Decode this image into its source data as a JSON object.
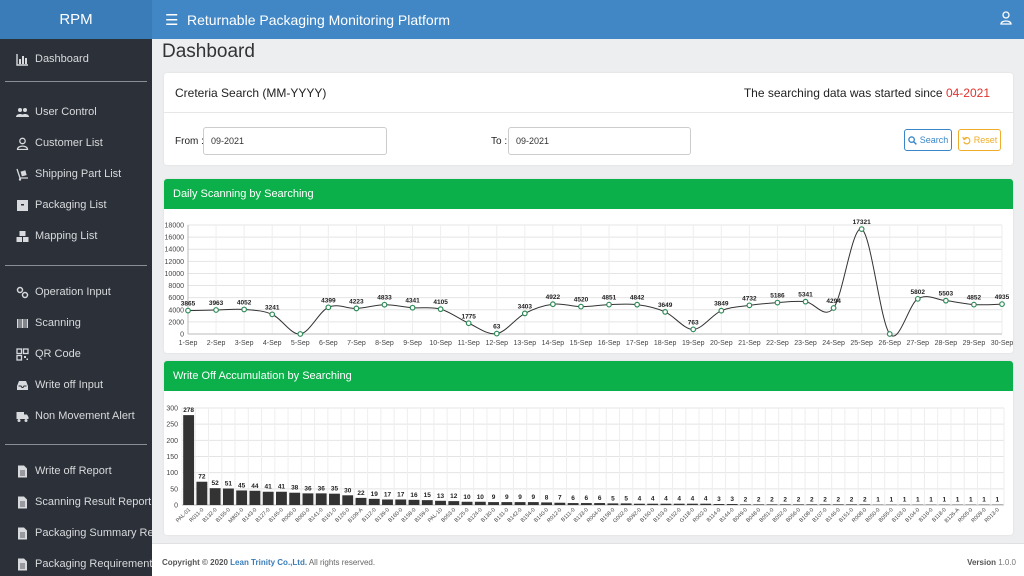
{
  "brand": "RPM",
  "header": {
    "title": "Returnable Packaging Monitoring Platform"
  },
  "sidebar": {
    "items": [
      {
        "label": "Dashboard",
        "icon": "chart-icon"
      },
      {
        "label": "User Control",
        "icon": "users-icon"
      },
      {
        "label": "Customer List",
        "icon": "user-icon"
      },
      {
        "label": "Shipping Part List",
        "icon": "dolly-icon"
      },
      {
        "label": "Packaging List",
        "icon": "box-icon"
      },
      {
        "label": "Mapping List",
        "icon": "boxes-icon"
      },
      {
        "label": "Operation Input",
        "icon": "cogs-icon"
      },
      {
        "label": "Scanning",
        "icon": "barcode-icon"
      },
      {
        "label": "QR Code",
        "icon": "qrcode-icon"
      },
      {
        "label": "Write off Input",
        "icon": "inbox-icon"
      },
      {
        "label": "Non Movement Alert",
        "icon": "truck-icon"
      },
      {
        "label": "Write off Report",
        "icon": "file-icon"
      },
      {
        "label": "Scanning Result Report",
        "icon": "file-icon"
      },
      {
        "label": "Packaging Summary Report",
        "icon": "file-icon"
      },
      {
        "label": "Packaging Requirement Rep",
        "icon": "file-icon"
      }
    ]
  },
  "page": {
    "title": "Dashboard"
  },
  "search": {
    "title": "Creteria Search (MM-YYYY)",
    "since_text": "The searching data was started since",
    "since_date": "04-2021",
    "from_label": "From :",
    "from_value": "09-2021",
    "to_label": "To :",
    "to_value": "09-2021",
    "search_label": "Search",
    "reset_label": "Reset"
  },
  "daily": {
    "title": "Daily Scanning by Searching"
  },
  "writeoff": {
    "title": "Write Off Accumulation by Searching"
  },
  "footer": {
    "copyright_prefix": "Copyright © 2020",
    "company": "Lean Trinity Co.,Ltd.",
    "rights": "All rights reserved.",
    "version_label": "Version",
    "version": "1.0.0"
  },
  "colors": {
    "accent": "#4187c6",
    "panel_header": "#0cb04a",
    "highlight": "#e0322e",
    "line": "#333333",
    "bar": "#333333"
  },
  "chart_data": [
    {
      "type": "line",
      "title": "Daily Scanning by Searching",
      "categories": [
        "1-Sep",
        "2-Sep",
        "3-Sep",
        "4-Sep",
        "5-Sep",
        "6-Sep",
        "7-Sep",
        "8-Sep",
        "9-Sep",
        "10-Sep",
        "11-Sep",
        "12-Sep",
        "13-Sep",
        "14-Sep",
        "15-Sep",
        "16-Sep",
        "17-Sep",
        "18-Sep",
        "19-Sep",
        "20-Sep",
        "21-Sep",
        "22-Sep",
        "23-Sep",
        "24-Sep",
        "25-Sep",
        "26-Sep",
        "27-Sep",
        "28-Sep",
        "29-Sep",
        "30-Sep"
      ],
      "values": [
        3865,
        3963,
        4052,
        3241,
        null,
        4399,
        4223,
        4833,
        4341,
        4105,
        1775,
        63,
        3403,
        4922,
        4520,
        4851,
        4842,
        3649,
        763,
        3849,
        4732,
        5186,
        5341,
        4294,
        17321,
        null,
        5802,
        5503,
        4852,
        4935
      ],
      "yticks": [
        0,
        2000,
        4000,
        6000,
        8000,
        10000,
        12000,
        14000,
        16000,
        18000
      ],
      "ylim": [
        0,
        18000
      ],
      "grid": true,
      "data_labels": true
    },
    {
      "type": "bar",
      "title": "Write Off Accumulation by Searching",
      "categories": [
        "PAL-01",
        "R011-0",
        "B132-0",
        "B155-0",
        "M801-0",
        "B143-0",
        "B127-0",
        "B145-0",
        "R006-0",
        "B060-0",
        "B141-0",
        "B161-0",
        "B126-0",
        "B109-A",
        "B112-0",
        "B139-0",
        "B160-0",
        "B158-0",
        "B159-0",
        "PAL-10",
        "B053-0",
        "B125-0",
        "B124-0",
        "B130-0",
        "B131-0",
        "B142-0",
        "B154-0",
        "B140-0",
        "R012-0",
        "B111-0",
        "B133-0",
        "R004-0",
        "B158-0",
        "G002-0",
        "B092-0",
        "B150-0",
        "B153-0",
        "B152-0",
        "G118-0",
        "R002-0",
        "B114-0",
        "B144-0",
        "B049-0",
        "B048-0",
        "B051-0",
        "B052-0",
        "B056-0",
        "B108-0",
        "B107-0",
        "B146-0",
        "B151-0",
        "R008-0",
        "B050-0",
        "B055-0",
        "B103-0",
        "B104-0",
        "B116-0",
        "B118-0",
        "B126-A",
        "R005-0",
        "R009-0",
        "R013-0"
      ],
      "values": [
        278,
        72,
        52,
        51,
        45,
        44,
        41,
        41,
        38,
        36,
        36,
        35,
        30,
        22,
        19,
        17,
        17,
        16,
        15,
        13,
        12,
        10,
        10,
        9,
        9,
        9,
        9,
        8,
        7,
        6,
        6,
        6,
        5,
        5,
        4,
        4,
        4,
        4,
        4,
        4,
        3,
        3,
        2,
        2,
        2,
        2,
        2,
        2,
        2,
        2,
        2,
        2,
        1,
        1,
        1,
        1,
        1,
        1,
        1,
        1,
        1,
        1
      ],
      "yticks": [
        0,
        50,
        100,
        150,
        200,
        250,
        300
      ],
      "ylim": [
        0,
        300
      ],
      "grid": true,
      "data_labels": true
    }
  ]
}
